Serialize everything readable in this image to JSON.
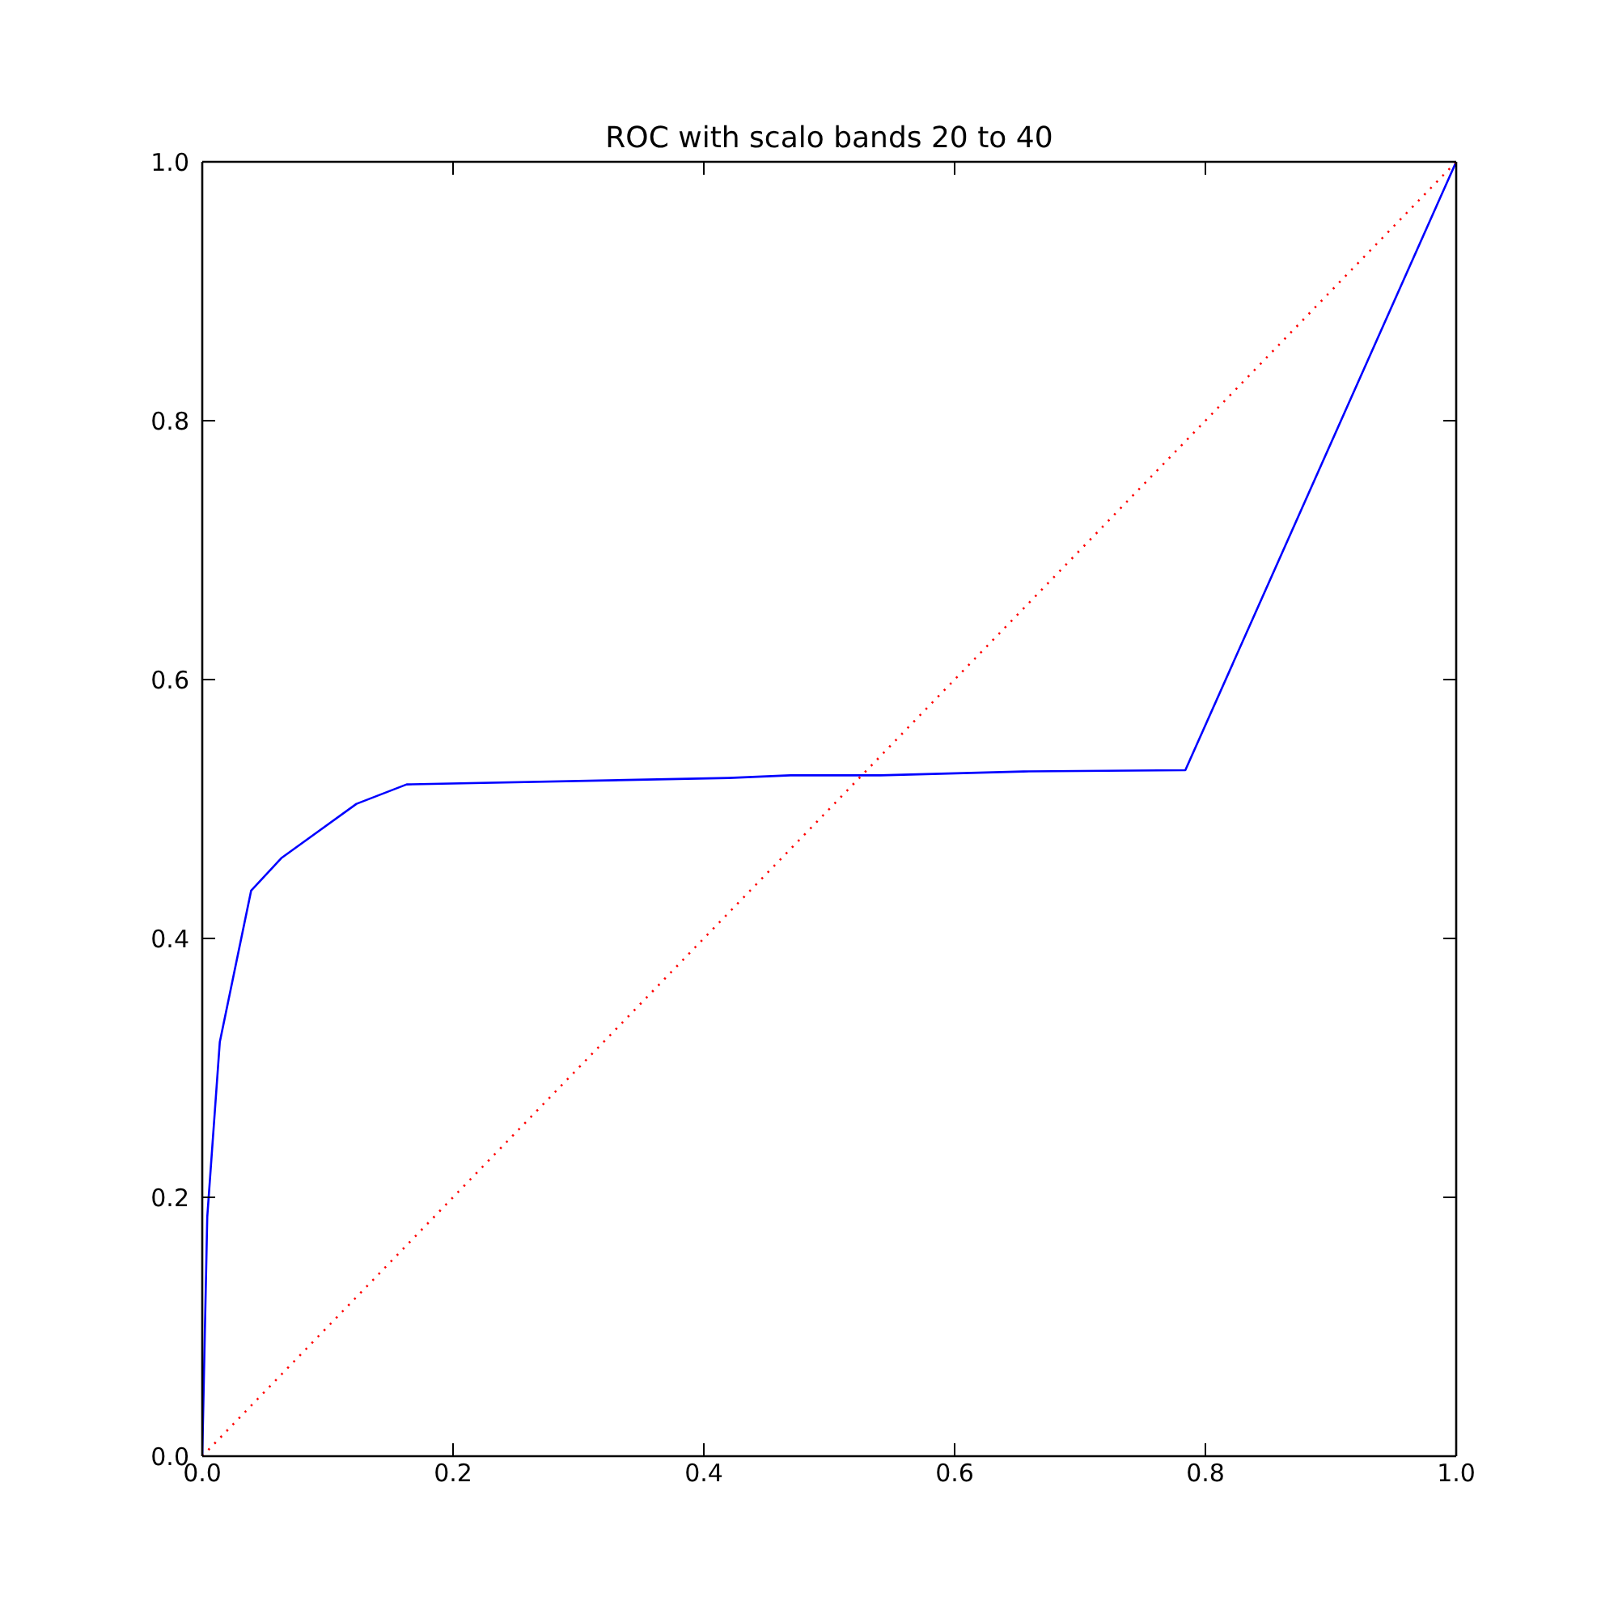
{
  "chart_data": {
    "type": "line",
    "title": "ROC with scalo bands 20 to 40",
    "xlim": [
      0,
      1
    ],
    "ylim": [
      0,
      1
    ],
    "xticks": [
      {
        "value": 0,
        "label": "0.0"
      },
      0.2,
      0.4,
      0.6,
      0.8,
      {
        "value": 1,
        "label": "1.0"
      }
    ],
    "yticks": [
      {
        "value": 0,
        "label": "0.0"
      },
      0.2,
      0.4,
      0.6,
      0.8,
      {
        "value": 1,
        "label": "1.0"
      }
    ],
    "marker": "none",
    "series": [
      {
        "color": "#0000ff",
        "line_style": "solid",
        "x": [
          0,
          0.004,
          0.014,
          0.039,
          0.063,
          0.123,
          0.163,
          0.42,
          0.469,
          0.541,
          0.655,
          0.784,
          1
        ],
        "values": [
          0,
          0.185,
          0.32,
          0.437,
          0.462,
          0.504,
          0.519,
          0.524,
          0.526,
          0.526,
          0.529,
          0.53,
          1
        ]
      },
      {
        "color": "#ff0000",
        "line_style": "dotted",
        "x": [
          0,
          1
        ],
        "values": [
          0,
          1
        ]
      }
    ]
  }
}
